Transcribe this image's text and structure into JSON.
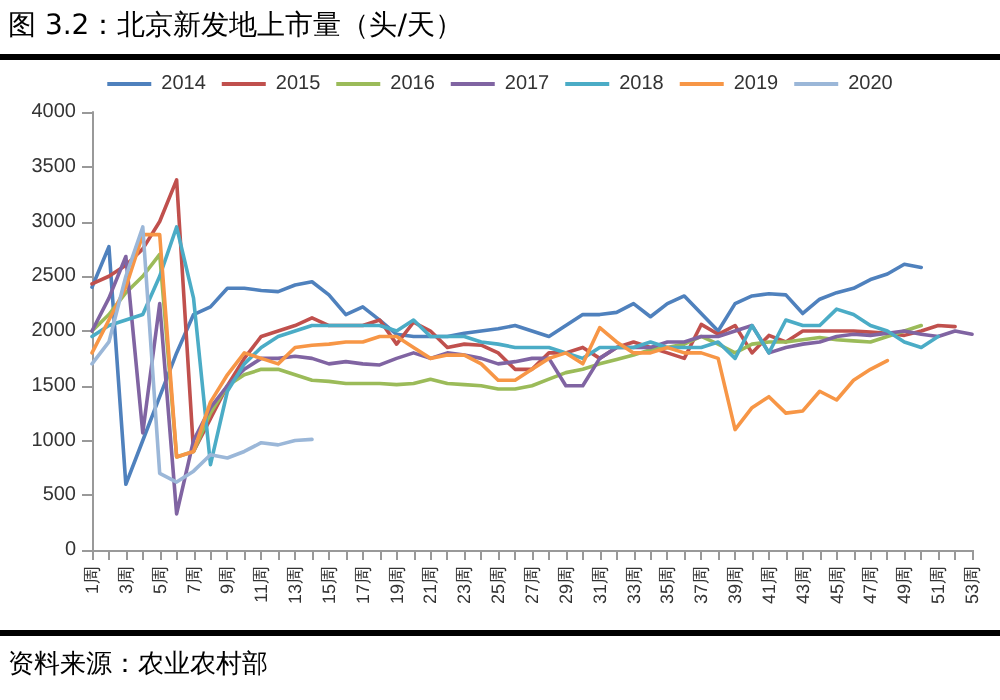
{
  "chart_data": {
    "type": "line",
    "title": "图 3.2：北京新发地上市量（头/天）",
    "categories": [
      "1周",
      null,
      "3周",
      null,
      "5周",
      null,
      "7周",
      null,
      "9周",
      null,
      "11周",
      null,
      "13周",
      null,
      "15周",
      null,
      "17周",
      null,
      "19周",
      null,
      "21周",
      null,
      "23周",
      null,
      "25周",
      null,
      "27周",
      null,
      "29周",
      null,
      "31周",
      null,
      "33周",
      null,
      "35周",
      null,
      "37周",
      null,
      "39周",
      null,
      "41周",
      null,
      "43周",
      null,
      "45周",
      null,
      "47周",
      null,
      "49周",
      null,
      "51周",
      null,
      "53周"
    ],
    "series": [
      {
        "name": "2014",
        "color": "#4f81bd",
        "values": [
          2400,
          2770,
          600,
          1000,
          1400,
          1800,
          2150,
          2220,
          2390,
          2390,
          2370,
          2360,
          2420,
          2450,
          2330,
          2150,
          2220,
          2100,
          1970,
          1950,
          1950,
          1950,
          1980,
          2000,
          2020,
          2050,
          2000,
          1950,
          2050,
          2150,
          2150,
          2170,
          2250,
          2130,
          2250,
          2320,
          2160,
          2000,
          2250,
          2320,
          2340,
          2330,
          2160,
          2290,
          2350,
          2390,
          2470,
          2520,
          2610,
          2580,
          null,
          null,
          null
        ]
      },
      {
        "name": "2015",
        "color": "#c0504d",
        "values": [
          2430,
          2500,
          2600,
          2750,
          3000,
          3380,
          900,
          1200,
          1500,
          1750,
          1950,
          2000,
          2050,
          2120,
          2050,
          2050,
          2050,
          2100,
          1880,
          2080,
          2000,
          1850,
          1880,
          1870,
          1800,
          1650,
          1650,
          1800,
          1800,
          1850,
          1750,
          1850,
          1900,
          1850,
          1800,
          1750,
          2060,
          1970,
          2050,
          1800,
          1960,
          1900,
          2000,
          2000,
          2000,
          2000,
          1990,
          1980,
          1960,
          2000,
          2050,
          2040,
          null
        ]
      },
      {
        "name": "2016",
        "color": "#9bbb59",
        "values": [
          2000,
          2150,
          2350,
          2500,
          2700,
          850,
          900,
          1250,
          1500,
          1600,
          1650,
          1650,
          1600,
          1550,
          1540,
          1520,
          1520,
          1520,
          1510,
          1520,
          1560,
          1520,
          1510,
          1500,
          1470,
          1470,
          1500,
          1560,
          1620,
          1650,
          1700,
          1740,
          1780,
          1830,
          1850,
          1880,
          1950,
          1880,
          1800,
          1880,
          1900,
          1900,
          1920,
          1940,
          1920,
          1910,
          1900,
          1950,
          2000,
          2050,
          null,
          null,
          null
        ]
      },
      {
        "name": "2017",
        "color": "#8064a2",
        "values": [
          2000,
          2300,
          2680,
          1070,
          2250,
          330,
          1000,
          1300,
          1500,
          1650,
          1750,
          1750,
          1770,
          1750,
          1700,
          1720,
          1700,
          1690,
          1750,
          1800,
          1750,
          1800,
          1780,
          1750,
          1700,
          1720,
          1750,
          1750,
          1500,
          1500,
          1750,
          1850,
          1850,
          1850,
          1900,
          1900,
          1950,
          1950,
          2000,
          2050,
          1800,
          1850,
          1880,
          1900,
          1950,
          1970,
          1960,
          1980,
          2000,
          1970,
          1950,
          2000,
          1970
        ]
      },
      {
        "name": "2018",
        "color": "#4bacc6",
        "values": [
          1950,
          2050,
          2100,
          2150,
          2500,
          2950,
          2300,
          780,
          1450,
          1700,
          1850,
          1950,
          2000,
          2050,
          2050,
          2050,
          2050,
          2050,
          2000,
          2100,
          1950,
          1950,
          1950,
          1900,
          1880,
          1850,
          1850,
          1850,
          1800,
          1750,
          1850,
          1850,
          1850,
          1900,
          1850,
          1850,
          1850,
          1900,
          1750,
          2050,
          1800,
          2100,
          2050,
          2050,
          2200,
          2150,
          2050,
          2000,
          1900,
          1850,
          1950,
          null,
          null
        ]
      },
      {
        "name": "2019",
        "color": "#f79646",
        "values": [
          1800,
          2100,
          2400,
          2880,
          2880,
          850,
          900,
          1350,
          1600,
          1800,
          1750,
          1700,
          1850,
          1870,
          1880,
          1900,
          1900,
          1950,
          1950,
          1850,
          1750,
          1780,
          1780,
          1700,
          1550,
          1550,
          1650,
          1750,
          1800,
          1700,
          2030,
          1900,
          1800,
          1800,
          1850,
          1800,
          1800,
          1750,
          1100,
          1300,
          1400,
          1250,
          1270,
          1450,
          1370,
          1550,
          1650,
          1730,
          null,
          null,
          null,
          null,
          null
        ]
      },
      {
        "name": "2020",
        "color": "#9bb7d8",
        "values": [
          1700,
          1900,
          2500,
          2950,
          700,
          620,
          720,
          870,
          840,
          900,
          980,
          960,
          1000,
          1010,
          null,
          null,
          null,
          null,
          null,
          null,
          null,
          null,
          null,
          null,
          null,
          null,
          null,
          null,
          null,
          null,
          null,
          null,
          null,
          null,
          null,
          null,
          null,
          null,
          null,
          null,
          null,
          null,
          null,
          null,
          null,
          null,
          null,
          null,
          null,
          null,
          null,
          null,
          null
        ]
      }
    ],
    "ylim": [
      0,
      4000
    ],
    "yticks": [
      0,
      500,
      1000,
      1500,
      2000,
      2500,
      3000,
      3500,
      4000
    ],
    "grid": false,
    "legend": "top",
    "marker": "none",
    "line_style": "solid",
    "annotations": [
      "资料来源：农业农村部"
    ]
  }
}
